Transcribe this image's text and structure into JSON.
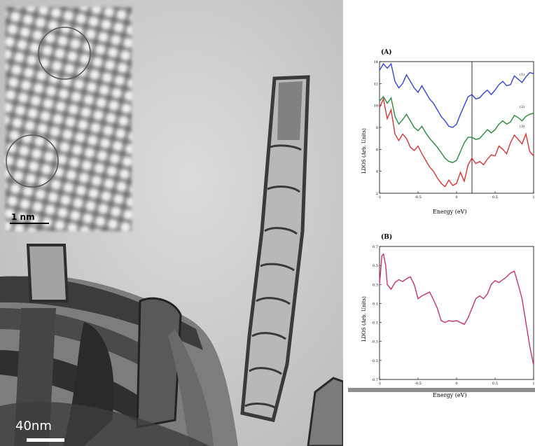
{
  "micrograph": {
    "inset_scale_label": "1 nm",
    "main_scale_label": "40nm"
  },
  "chart_data": [
    {
      "panel": "(A)",
      "type": "line",
      "xlabel": "Energy (eV)",
      "ylabel": "LDOS (Arb. Units)",
      "xlim": [
        -1,
        1
      ],
      "ylim": [
        2,
        14
      ],
      "x_ticks": [
        "-1",
        "-0.5",
        "0",
        "0.5",
        "1"
      ],
      "y_ticks": [
        "2",
        "4",
        "6",
        "8",
        "10",
        "12",
        "14"
      ],
      "vertical_line_x": 0.2,
      "series": [
        {
          "name": "(1)",
          "color": "#3344dd",
          "x": [
            -1,
            -0.95,
            -0.9,
            -0.85,
            -0.8,
            -0.75,
            -0.7,
            -0.65,
            -0.6,
            -0.55,
            -0.5,
            -0.45,
            -0.4,
            -0.35,
            -0.3,
            -0.25,
            -0.2,
            -0.15,
            -0.1,
            -0.05,
            0,
            0.05,
            0.1,
            0.15,
            0.2,
            0.25,
            0.3,
            0.35,
            0.4,
            0.45,
            0.5,
            0.55,
            0.6,
            0.65,
            0.7,
            0.75,
            0.8,
            0.85,
            0.9,
            0.95,
            1
          ],
          "y": [
            13.2,
            13.8,
            13.4,
            13.8,
            12.2,
            11.6,
            12.0,
            12.8,
            12.2,
            11.6,
            11.2,
            11.8,
            11.2,
            10.6,
            10.2,
            9.6,
            9.0,
            8.6,
            8.1,
            8.0,
            8.3,
            9.2,
            10.0,
            10.8,
            11.0,
            10.6,
            10.7,
            11.1,
            11.4,
            11.0,
            11.4,
            11.9,
            12.2,
            11.8,
            11.9,
            12.7,
            12.4,
            12.1,
            12.6,
            13.0,
            12.9
          ]
        },
        {
          "name": "(2)",
          "color": "#2a8a3a",
          "x": [
            -1,
            -0.95,
            -0.9,
            -0.85,
            -0.8,
            -0.75,
            -0.7,
            -0.65,
            -0.6,
            -0.55,
            -0.5,
            -0.45,
            -0.4,
            -0.35,
            -0.3,
            -0.25,
            -0.2,
            -0.15,
            -0.1,
            -0.05,
            0,
            0.05,
            0.1,
            0.15,
            0.2,
            0.25,
            0.3,
            0.35,
            0.4,
            0.45,
            0.5,
            0.55,
            0.6,
            0.65,
            0.7,
            0.75,
            0.8,
            0.85,
            0.9,
            0.95,
            1
          ],
          "y": [
            10.4,
            10.8,
            10.2,
            10.7,
            9.0,
            8.3,
            8.7,
            9.2,
            8.6,
            8.0,
            7.7,
            8.1,
            7.5,
            7.0,
            6.6,
            6.2,
            5.7,
            5.2,
            4.9,
            4.8,
            5.0,
            5.8,
            6.6,
            7.1,
            7.1,
            6.9,
            7.0,
            7.4,
            7.8,
            7.5,
            7.8,
            8.3,
            8.6,
            8.3,
            8.5,
            9.1,
            8.9,
            8.6,
            9.0,
            9.2,
            9.3
          ]
        },
        {
          "name": "(3)",
          "color": "#dd3333",
          "x": [
            -1,
            -0.95,
            -0.9,
            -0.85,
            -0.8,
            -0.75,
            -0.7,
            -0.65,
            -0.6,
            -0.55,
            -0.5,
            -0.45,
            -0.4,
            -0.35,
            -0.3,
            -0.25,
            -0.2,
            -0.15,
            -0.1,
            -0.05,
            0,
            0.05,
            0.1,
            0.15,
            0.2,
            0.25,
            0.3,
            0.35,
            0.4,
            0.45,
            0.5,
            0.55,
            0.6,
            0.65,
            0.7,
            0.75,
            0.8,
            0.85,
            0.9,
            0.95,
            1
          ],
          "y": [
            9.8,
            10.6,
            8.8,
            9.6,
            7.4,
            6.8,
            7.4,
            7.0,
            6.2,
            5.9,
            6.3,
            5.6,
            5.0,
            4.4,
            4.0,
            3.4,
            2.9,
            2.6,
            3.2,
            2.7,
            2.9,
            3.9,
            3.1,
            4.6,
            5.2,
            4.7,
            4.9,
            4.6,
            5.1,
            5.5,
            5.4,
            6.3,
            6.0,
            5.6,
            6.6,
            7.3,
            6.9,
            6.5,
            7.4,
            5.8,
            5.4
          ]
        }
      ]
    },
    {
      "panel": "(B)",
      "type": "line",
      "xlabel": "Energy (eV)",
      "ylabel": "LDOS (Arb. Units)",
      "xlim": [
        -1,
        1
      ],
      "ylim": [
        -0.7,
        0.7
      ],
      "x_ticks": [
        "-1",
        "-0.5",
        "0",
        "0.5",
        "1"
      ],
      "y_ticks": [
        "-0.7",
        "-0.5",
        "-0.3",
        "-0.1",
        "0.1",
        "0.3",
        "0.5",
        "0.7"
      ],
      "series": [
        {
          "color": "#cc3366",
          "x": [
            -1,
            -0.97,
            -0.95,
            -0.92,
            -0.9,
            -0.85,
            -0.8,
            -0.75,
            -0.7,
            -0.65,
            -0.6,
            -0.55,
            -0.5,
            -0.45,
            -0.4,
            -0.35,
            -0.3,
            -0.25,
            -0.2,
            -0.15,
            -0.1,
            -0.05,
            0,
            0.05,
            0.1,
            0.15,
            0.2,
            0.25,
            0.3,
            0.35,
            0.4,
            0.45,
            0.5,
            0.55,
            0.6,
            0.65,
            0.7,
            0.75,
            0.8,
            0.85,
            0.9,
            0.95,
            1
          ],
          "y": [
            0.3,
            0.6,
            0.62,
            0.5,
            0.3,
            0.25,
            0.32,
            0.35,
            0.33,
            0.36,
            0.38,
            0.3,
            0.15,
            0.18,
            0.2,
            0.22,
            0.14,
            0.05,
            -0.08,
            -0.1,
            -0.08,
            -0.09,
            -0.08,
            -0.1,
            -0.12,
            -0.05,
            0.05,
            0.15,
            0.18,
            0.15,
            0.2,
            0.3,
            0.34,
            0.32,
            0.35,
            0.38,
            0.42,
            0.44,
            0.3,
            0.15,
            -0.1,
            -0.35,
            -0.55
          ]
        }
      ]
    }
  ]
}
